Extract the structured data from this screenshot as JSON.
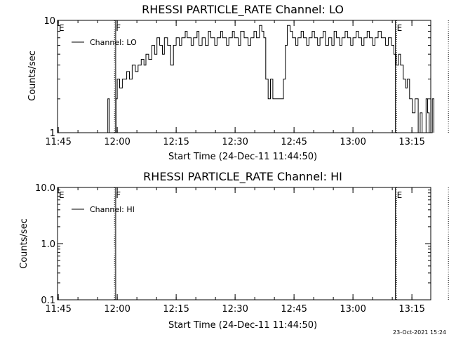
{
  "footer": {
    "date_stamp": "23-Oct-2021 15:24"
  },
  "chart_data": [
    {
      "type": "line",
      "title": "RHESSI PARTICLE_RATE Channel: LO",
      "xlabel": "Start Time (24-Dec-11 11:44:50)",
      "ylabel": "Counts/sec",
      "y_scale": "log",
      "ylim": [
        1,
        10
      ],
      "xlim_minutes": [
        0,
        95
      ],
      "x_tick_labels": [
        "11:45",
        "12:00",
        "12:15",
        "12:30",
        "12:45",
        "13:00",
        "13:15"
      ],
      "x_tick_minutes": [
        0.2,
        15.2,
        30.2,
        45.2,
        60.2,
        75.2,
        90.2
      ],
      "y_tick_labels": [
        "1",
        "10"
      ],
      "y_tick_values": [
        1,
        10
      ],
      "legend": {
        "entries": [
          "Channel: LO"
        ],
        "placement": "top-left"
      },
      "markers": [
        {
          "label": "E",
          "kind": "text",
          "minute": 0.0
        },
        {
          "label": "F",
          "kind": "dotted",
          "minute": 14.5
        },
        {
          "label": "",
          "kind": "solid",
          "minute": 14.8
        },
        {
          "label": "E",
          "kind": "solid",
          "minute": 86.0
        },
        {
          "label": "",
          "kind": "dotted",
          "minute": 86.3
        },
        {
          "label": "",
          "kind": "dotted",
          "minute": 99.5
        }
      ],
      "series": [
        {
          "name": "Channel: LO",
          "points": [
            [
              12.8,
              1
            ],
            [
              12.8,
              2
            ],
            [
              13.2,
              2
            ],
            [
              13.2,
              1
            ],
            [
              14.9,
              1
            ],
            [
              14.9,
              2
            ],
            [
              15.2,
              2
            ],
            [
              15.2,
              3
            ],
            [
              15.8,
              3
            ],
            [
              15.8,
              2.5
            ],
            [
              16.5,
              2.5
            ],
            [
              16.5,
              3
            ],
            [
              17.6,
              3
            ],
            [
              17.6,
              3.5
            ],
            [
              18.3,
              3.5
            ],
            [
              18.3,
              3
            ],
            [
              19.0,
              3
            ],
            [
              19.0,
              4
            ],
            [
              19.8,
              4
            ],
            [
              19.8,
              3.5
            ],
            [
              20.5,
              3.5
            ],
            [
              20.5,
              4
            ],
            [
              21.3,
              4
            ],
            [
              21.3,
              4.5
            ],
            [
              22.0,
              4.5
            ],
            [
              22.0,
              4
            ],
            [
              22.5,
              4
            ],
            [
              22.5,
              5
            ],
            [
              23.2,
              5
            ],
            [
              23.2,
              4.5
            ],
            [
              24.0,
              4.5
            ],
            [
              24.0,
              6
            ],
            [
              24.7,
              6
            ],
            [
              24.7,
              5
            ],
            [
              25.3,
              5
            ],
            [
              25.3,
              7
            ],
            [
              26.0,
              7
            ],
            [
              26.0,
              6
            ],
            [
              26.7,
              6
            ],
            [
              26.7,
              5
            ],
            [
              27.2,
              5
            ],
            [
              27.2,
              7
            ],
            [
              28.0,
              7
            ],
            [
              28.0,
              6
            ],
            [
              28.8,
              6
            ],
            [
              28.8,
              4
            ],
            [
              29.5,
              4
            ],
            [
              29.5,
              6
            ],
            [
              30.2,
              6
            ],
            [
              30.2,
              7
            ],
            [
              31.0,
              7
            ],
            [
              31.0,
              6
            ],
            [
              31.6,
              6
            ],
            [
              31.6,
              7
            ],
            [
              32.5,
              7
            ],
            [
              32.5,
              8
            ],
            [
              33.0,
              8
            ],
            [
              33.0,
              7
            ],
            [
              34.0,
              7
            ],
            [
              34.0,
              6
            ],
            [
              34.6,
              6
            ],
            [
              34.6,
              7
            ],
            [
              35.5,
              7
            ],
            [
              35.5,
              8
            ],
            [
              36.0,
              8
            ],
            [
              36.0,
              6
            ],
            [
              36.8,
              6
            ],
            [
              36.8,
              7
            ],
            [
              37.6,
              7
            ],
            [
              37.6,
              6
            ],
            [
              38.4,
              6
            ],
            [
              38.4,
              8
            ],
            [
              39.0,
              8
            ],
            [
              39.0,
              7
            ],
            [
              40.0,
              7
            ],
            [
              40.0,
              6
            ],
            [
              40.6,
              6
            ],
            [
              40.6,
              7
            ],
            [
              41.5,
              7
            ],
            [
              41.5,
              8
            ],
            [
              42.0,
              8
            ],
            [
              42.0,
              7
            ],
            [
              43.0,
              7
            ],
            [
              43.0,
              6
            ],
            [
              43.6,
              6
            ],
            [
              43.6,
              7
            ],
            [
              44.5,
              7
            ],
            [
              44.5,
              8
            ],
            [
              45.0,
              8
            ],
            [
              45.0,
              7
            ],
            [
              46.0,
              7
            ],
            [
              46.0,
              6
            ],
            [
              46.6,
              6
            ],
            [
              46.6,
              8
            ],
            [
              47.5,
              8
            ],
            [
              47.5,
              7
            ],
            [
              48.5,
              7
            ],
            [
              48.5,
              6
            ],
            [
              49.2,
              6
            ],
            [
              49.2,
              7
            ],
            [
              50.0,
              7
            ],
            [
              50.0,
              8
            ],
            [
              50.6,
              8
            ],
            [
              50.6,
              7
            ],
            [
              51.4,
              7
            ],
            [
              51.4,
              9
            ],
            [
              52.0,
              9
            ],
            [
              52.0,
              8
            ],
            [
              52.5,
              8
            ],
            [
              52.5,
              7
            ],
            [
              53.0,
              7
            ],
            [
              53.0,
              3
            ],
            [
              53.6,
              3
            ],
            [
              53.6,
              2
            ],
            [
              54.2,
              2
            ],
            [
              54.2,
              3
            ],
            [
              54.8,
              3
            ],
            [
              54.8,
              2
            ],
            [
              57.5,
              2
            ],
            [
              57.5,
              3
            ],
            [
              58.0,
              3
            ],
            [
              58.0,
              6
            ],
            [
              58.5,
              6
            ],
            [
              58.5,
              9
            ],
            [
              59.2,
              9
            ],
            [
              59.2,
              8
            ],
            [
              59.8,
              8
            ],
            [
              59.8,
              7
            ],
            [
              60.6,
              7
            ],
            [
              60.6,
              6
            ],
            [
              61.2,
              6
            ],
            [
              61.2,
              7
            ],
            [
              62.0,
              7
            ],
            [
              62.0,
              8
            ],
            [
              62.6,
              8
            ],
            [
              62.6,
              7
            ],
            [
              63.4,
              7
            ],
            [
              63.4,
              6
            ],
            [
              64.0,
              6
            ],
            [
              64.0,
              7
            ],
            [
              64.8,
              7
            ],
            [
              64.8,
              8
            ],
            [
              65.4,
              8
            ],
            [
              65.4,
              7
            ],
            [
              66.2,
              7
            ],
            [
              66.2,
              6
            ],
            [
              66.8,
              6
            ],
            [
              66.8,
              7
            ],
            [
              67.6,
              7
            ],
            [
              67.6,
              8
            ],
            [
              68.2,
              8
            ],
            [
              68.2,
              6
            ],
            [
              69.0,
              6
            ],
            [
              69.0,
              7
            ],
            [
              69.8,
              7
            ],
            [
              69.8,
              6
            ],
            [
              70.4,
              6
            ],
            [
              70.4,
              8
            ],
            [
              71.0,
              8
            ],
            [
              71.0,
              7
            ],
            [
              71.8,
              7
            ],
            [
              71.8,
              6
            ],
            [
              72.4,
              6
            ],
            [
              72.4,
              7
            ],
            [
              73.2,
              7
            ],
            [
              73.2,
              8
            ],
            [
              73.8,
              8
            ],
            [
              73.8,
              7
            ],
            [
              74.6,
              7
            ],
            [
              74.6,
              6
            ],
            [
              75.2,
              6
            ],
            [
              75.2,
              7
            ],
            [
              76.0,
              7
            ],
            [
              76.0,
              8
            ],
            [
              76.6,
              8
            ],
            [
              76.6,
              7
            ],
            [
              77.4,
              7
            ],
            [
              77.4,
              6
            ],
            [
              78.0,
              6
            ],
            [
              78.0,
              7
            ],
            [
              78.8,
              7
            ],
            [
              78.8,
              8
            ],
            [
              79.4,
              8
            ],
            [
              79.4,
              7
            ],
            [
              80.2,
              7
            ],
            [
              80.2,
              6
            ],
            [
              80.8,
              6
            ],
            [
              80.8,
              7
            ],
            [
              81.6,
              7
            ],
            [
              81.6,
              8
            ],
            [
              82.4,
              8
            ],
            [
              82.4,
              7
            ],
            [
              83.5,
              7
            ],
            [
              83.5,
              6
            ],
            [
              84.2,
              6
            ],
            [
              84.2,
              7
            ],
            [
              85.0,
              7
            ],
            [
              85.0,
              6
            ],
            [
              85.6,
              6
            ],
            [
              85.6,
              5
            ],
            [
              86.2,
              5
            ],
            [
              86.2,
              4
            ],
            [
              86.8,
              4
            ],
            [
              86.8,
              5
            ],
            [
              87.3,
              5
            ],
            [
              87.3,
              4
            ],
            [
              88.0,
              4
            ],
            [
              88.0,
              3
            ],
            [
              88.6,
              3
            ],
            [
              88.6,
              2.5
            ],
            [
              89.0,
              2.5
            ],
            [
              89.0,
              3
            ],
            [
              89.6,
              3
            ],
            [
              89.6,
              2
            ],
            [
              90.3,
              2
            ],
            [
              90.3,
              1.5
            ],
            [
              91.0,
              1.5
            ],
            [
              91.0,
              2
            ],
            [
              91.8,
              2
            ],
            [
              91.8,
              1
            ],
            [
              92.3,
              1
            ],
            [
              92.3,
              1.5
            ],
            [
              92.8,
              1.5
            ],
            [
              92.8,
              1
            ],
            [
              93.8,
              1
            ],
            [
              93.8,
              2
            ],
            [
              94.2,
              2
            ],
            [
              94.2,
              1.5
            ],
            [
              94.6,
              1.5
            ],
            [
              94.6,
              1
            ],
            [
              95.4,
              1
            ],
            [
              95.4,
              2
            ],
            [
              95.8,
              2
            ],
            [
              95.8,
              1
            ]
          ]
        }
      ]
    },
    {
      "type": "line",
      "title": "RHESSI PARTICLE_RATE Channel: HI",
      "xlabel": "Start Time (24-Dec-11 11:44:50)",
      "ylabel": "Counts/sec",
      "y_scale": "log",
      "ylim": [
        0.1,
        10
      ],
      "xlim_minutes": [
        0,
        95
      ],
      "x_tick_labels": [
        "11:45",
        "12:00",
        "12:15",
        "12:30",
        "12:45",
        "13:00",
        "13:15"
      ],
      "x_tick_minutes": [
        0.2,
        15.2,
        30.2,
        45.2,
        60.2,
        75.2,
        90.2
      ],
      "y_tick_labels": [
        "0.1",
        "1.0",
        "10.0"
      ],
      "y_tick_values": [
        0.1,
        1,
        10
      ],
      "legend": {
        "entries": [
          "Channel: HI"
        ],
        "placement": "top-left"
      },
      "markers": [
        {
          "label": "E",
          "kind": "text",
          "minute": 0.0
        },
        {
          "label": "F",
          "kind": "dotted",
          "minute": 14.5
        },
        {
          "label": "",
          "kind": "solid",
          "minute": 14.8
        },
        {
          "label": "E",
          "kind": "solid",
          "minute": 86.0
        },
        {
          "label": "",
          "kind": "dotted",
          "minute": 86.3
        },
        {
          "label": "",
          "kind": "dotted",
          "minute": 99.5
        }
      ],
      "series": [
        {
          "name": "Channel: HI",
          "points": []
        }
      ]
    }
  ]
}
